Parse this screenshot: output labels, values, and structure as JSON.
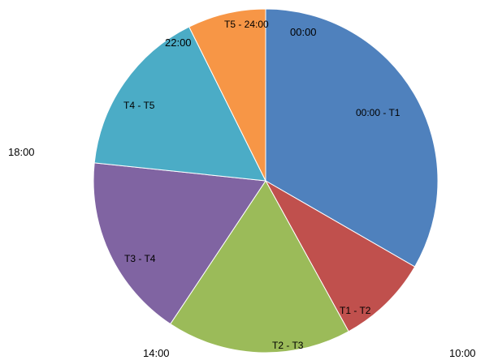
{
  "chart_data": {
    "type": "pie",
    "title": "",
    "slices": [
      {
        "label": "00:00 - T1",
        "value": 10,
        "color": "#4F81BD"
      },
      {
        "label": "T1 - T2",
        "value": 2.6,
        "color": "#C0504D"
      },
      {
        "label": "T2 - T3",
        "value": 5.2,
        "color": "#9BBB59"
      },
      {
        "label": "T3 - T4",
        "value": 5.2,
        "color": "#8064A2"
      },
      {
        "label": "T4 - T5",
        "value": 4.8,
        "color": "#4BACC6"
      },
      {
        "label": "T5 - 24:00",
        "value": 2.2,
        "color": "#F79646"
      }
    ],
    "time_labels": [
      "00:00",
      "10:00",
      "14:00",
      "18:00",
      "22:00"
    ],
    "legend": "none"
  }
}
